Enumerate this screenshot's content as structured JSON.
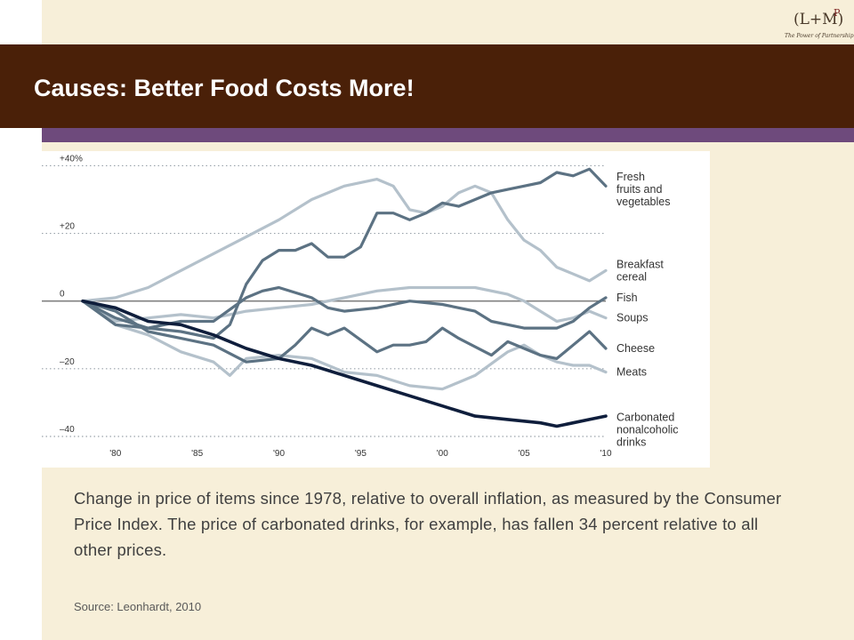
{
  "slide": {
    "title": "Causes: Better Food Costs More!",
    "caption": "Change in price of items since 1978, relative to overall inflation, as measured by the Consumer Price Index. The price of carbonated drinks, for example, has fallen 34 percent relative to all other prices.",
    "source": "Source: Leonhardt, 2010"
  },
  "logo": {
    "main": "(L+M)",
    "superscript": "P",
    "tagline": "The Power of Partnership"
  },
  "colors": {
    "header": "#4a2008",
    "accent": "#6e4a7c",
    "background": "#f7efd9",
    "dark_series": "#0f1e3c",
    "medium_series": "#5c7283",
    "light_series": "#b4c1cb"
  },
  "chart_data": {
    "type": "line",
    "title": "",
    "xlabel": "",
    "ylabel": "",
    "xlim": [
      1978,
      2010
    ],
    "ylim": [
      -45,
      43
    ],
    "x_tick_values": [
      1980,
      1985,
      1990,
      1995,
      2000,
      2005,
      2010
    ],
    "x_tick_labels": [
      "'80",
      "'85",
      "'90",
      "'95",
      "'00",
      "'05",
      "'10"
    ],
    "y_tick_values": [
      40,
      20,
      0,
      -20,
      -40
    ],
    "y_tick_labels": [
      "+40%",
      "+20",
      "0",
      "–20",
      "–40"
    ],
    "grid": "dotted horizontal lines at +40, +20, -20 and -40; solid zero line",
    "legend": "series labels printed at right end of lines",
    "series": [
      {
        "name": "Fresh fruits and vegetables",
        "label_lines": [
          "Fresh",
          "fruits and",
          "vegetables"
        ],
        "label_y": 33,
        "style": "medium",
        "points": [
          [
            1978,
            0
          ],
          [
            1980,
            -7
          ],
          [
            1982,
            -8
          ],
          [
            1984,
            -9
          ],
          [
            1986,
            -11
          ],
          [
            1987,
            -7
          ],
          [
            1988,
            5
          ],
          [
            1989,
            12
          ],
          [
            1990,
            15
          ],
          [
            1991,
            15
          ],
          [
            1992,
            17
          ],
          [
            1993,
            13
          ],
          [
            1994,
            13
          ],
          [
            1995,
            16
          ],
          [
            1996,
            26
          ],
          [
            1997,
            26
          ],
          [
            1998,
            24
          ],
          [
            1999,
            26
          ],
          [
            2000,
            29
          ],
          [
            2001,
            28
          ],
          [
            2002,
            30
          ],
          [
            2003,
            32
          ],
          [
            2004,
            33
          ],
          [
            2005,
            34
          ],
          [
            2006,
            35
          ],
          [
            2007,
            38
          ],
          [
            2008,
            37
          ],
          [
            2009,
            39
          ],
          [
            2010,
            34
          ]
        ]
      },
      {
        "name": "Breakfast cereal",
        "label_lines": [
          "Breakfast",
          "cereal"
        ],
        "label_y": 9,
        "style": "light",
        "points": [
          [
            1978,
            0
          ],
          [
            1980,
            1
          ],
          [
            1982,
            4
          ],
          [
            1984,
            9
          ],
          [
            1986,
            14
          ],
          [
            1988,
            19
          ],
          [
            1990,
            24
          ],
          [
            1992,
            30
          ],
          [
            1994,
            34
          ],
          [
            1996,
            36
          ],
          [
            1997,
            34
          ],
          [
            1998,
            27
          ],
          [
            1999,
            26
          ],
          [
            2000,
            28
          ],
          [
            2001,
            32
          ],
          [
            2002,
            34
          ],
          [
            2003,
            32
          ],
          [
            2004,
            24
          ],
          [
            2005,
            18
          ],
          [
            2006,
            15
          ],
          [
            2007,
            10
          ],
          [
            2008,
            8
          ],
          [
            2009,
            6
          ],
          [
            2010,
            9
          ]
        ]
      },
      {
        "name": "Fish",
        "label_lines": [
          "Fish"
        ],
        "label_y": 1,
        "style": "medium",
        "points": [
          [
            1978,
            0
          ],
          [
            1980,
            -5
          ],
          [
            1982,
            -8
          ],
          [
            1984,
            -6
          ],
          [
            1986,
            -6
          ],
          [
            1988,
            1
          ],
          [
            1989,
            3
          ],
          [
            1990,
            4
          ],
          [
            1992,
            1
          ],
          [
            1993,
            -2
          ],
          [
            1994,
            -3
          ],
          [
            1996,
            -2
          ],
          [
            1998,
            0
          ],
          [
            2000,
            -1
          ],
          [
            2002,
            -3
          ],
          [
            2003,
            -6
          ],
          [
            2005,
            -8
          ],
          [
            2006,
            -8
          ],
          [
            2007,
            -8
          ],
          [
            2008,
            -6
          ],
          [
            2009,
            -2
          ],
          [
            2010,
            1
          ]
        ]
      },
      {
        "name": "Soups",
        "label_lines": [
          "Soups"
        ],
        "label_y": -5,
        "style": "light",
        "points": [
          [
            1978,
            0
          ],
          [
            1980,
            -6
          ],
          [
            1982,
            -5
          ],
          [
            1984,
            -4
          ],
          [
            1986,
            -5
          ],
          [
            1988,
            -3
          ],
          [
            1990,
            -2
          ],
          [
            1992,
            -1
          ],
          [
            1994,
            1
          ],
          [
            1996,
            3
          ],
          [
            1998,
            4
          ],
          [
            2000,
            4
          ],
          [
            2002,
            4
          ],
          [
            2004,
            2
          ],
          [
            2005,
            0
          ],
          [
            2006,
            -3
          ],
          [
            2007,
            -6
          ],
          [
            2008,
            -5
          ],
          [
            2009,
            -3
          ],
          [
            2010,
            -5
          ]
        ]
      },
      {
        "name": "Cheese",
        "label_lines": [
          "Cheese"
        ],
        "label_y": -14,
        "style": "medium",
        "points": [
          [
            1978,
            0
          ],
          [
            1980,
            -3
          ],
          [
            1982,
            -9
          ],
          [
            1984,
            -11
          ],
          [
            1986,
            -13
          ],
          [
            1988,
            -18
          ],
          [
            1990,
            -17
          ],
          [
            1991,
            -13
          ],
          [
            1992,
            -8
          ],
          [
            1993,
            -10
          ],
          [
            1994,
            -8
          ],
          [
            1996,
            -15
          ],
          [
            1997,
            -13
          ],
          [
            1998,
            -13
          ],
          [
            1999,
            -12
          ],
          [
            2000,
            -8
          ],
          [
            2001,
            -11
          ],
          [
            2003,
            -16
          ],
          [
            2004,
            -12
          ],
          [
            2005,
            -14
          ],
          [
            2006,
            -16
          ],
          [
            2007,
            -17
          ],
          [
            2008,
            -13
          ],
          [
            2009,
            -9
          ],
          [
            2010,
            -14
          ]
        ]
      },
      {
        "name": "Meats",
        "label_lines": [
          "Meats"
        ],
        "label_y": -21,
        "style": "light",
        "points": [
          [
            1978,
            0
          ],
          [
            1980,
            -7
          ],
          [
            1982,
            -10
          ],
          [
            1984,
            -15
          ],
          [
            1986,
            -18
          ],
          [
            1987,
            -22
          ],
          [
            1988,
            -17
          ],
          [
            1990,
            -16
          ],
          [
            1992,
            -17
          ],
          [
            1994,
            -21
          ],
          [
            1996,
            -22
          ],
          [
            1998,
            -25
          ],
          [
            2000,
            -26
          ],
          [
            2001,
            -24
          ],
          [
            2002,
            -22
          ],
          [
            2004,
            -15
          ],
          [
            2005,
            -13
          ],
          [
            2006,
            -16
          ],
          [
            2007,
            -18
          ],
          [
            2008,
            -19
          ],
          [
            2009,
            -19
          ],
          [
            2010,
            -21
          ]
        ]
      },
      {
        "name": "Carbonated nonalcoholic drinks",
        "label_lines": [
          "Carbonated",
          "nonalcoholic",
          "drinks"
        ],
        "label_y": -38,
        "style": "dark",
        "points": [
          [
            1978,
            0
          ],
          [
            1980,
            -2
          ],
          [
            1982,
            -6
          ],
          [
            1984,
            -7
          ],
          [
            1986,
            -10
          ],
          [
            1988,
            -14
          ],
          [
            1990,
            -17
          ],
          [
            1992,
            -19
          ],
          [
            1994,
            -22
          ],
          [
            1996,
            -25
          ],
          [
            1998,
            -28
          ],
          [
            2000,
            -31
          ],
          [
            2002,
            -34
          ],
          [
            2004,
            -35
          ],
          [
            2006,
            -36
          ],
          [
            2007,
            -37
          ],
          [
            2008,
            -36
          ],
          [
            2009,
            -35
          ],
          [
            2010,
            -34
          ]
        ]
      }
    ]
  }
}
